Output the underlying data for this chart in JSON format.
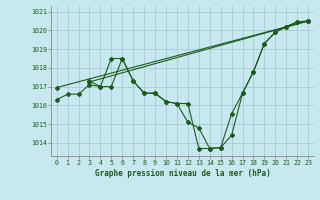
{
  "background_color": "#c8e8f0",
  "grid_color": "#a8c8d8",
  "line_color": "#1a5c1a",
  "title": "Graphe pression niveau de la mer (hPa)",
  "xlim": [
    -0.5,
    23.5
  ],
  "ylim": [
    1013.3,
    1021.3
  ],
  "yticks": [
    1014,
    1015,
    1016,
    1017,
    1018,
    1019,
    1020,
    1021
  ],
  "xticks": [
    0,
    1,
    2,
    3,
    4,
    5,
    6,
    7,
    8,
    9,
    10,
    11,
    12,
    13,
    14,
    15,
    16,
    17,
    18,
    19,
    20,
    21,
    22,
    23
  ],
  "series": [
    {
      "x": [
        0,
        1,
        2,
        3,
        4,
        5,
        6,
        7,
        8,
        9,
        10,
        11,
        12,
        13,
        14,
        15,
        16,
        17,
        18,
        19,
        20,
        21,
        22,
        23
      ],
      "y": [
        1016.3,
        1016.6,
        1016.6,
        1017.1,
        1017.0,
        1017.0,
        1018.5,
        1017.3,
        1016.65,
        1016.65,
        1016.2,
        1016.1,
        1016.1,
        1013.7,
        1013.7,
        1013.75,
        1015.55,
        1016.65,
        1017.8,
        1019.3,
        1019.9,
        1020.2,
        1020.45,
        1020.5
      ]
    },
    {
      "x": [
        3,
        4,
        5,
        6,
        7,
        8,
        9,
        10,
        11,
        12,
        13,
        14,
        15,
        16,
        17,
        18,
        19,
        20,
        21,
        22,
        23
      ],
      "y": [
        1017.3,
        1017.0,
        1018.5,
        1018.5,
        1017.3,
        1016.65,
        1016.65,
        1016.2,
        1016.1,
        1015.1,
        1014.8,
        1013.7,
        1013.75,
        1014.4,
        1016.65,
        1017.8,
        1019.3,
        1019.9,
        1020.2,
        1020.45,
        1020.5
      ]
    },
    {
      "x": [
        0,
        23
      ],
      "y": [
        1016.95,
        1020.5
      ]
    },
    {
      "x": [
        3,
        23
      ],
      "y": [
        1017.25,
        1020.5
      ]
    }
  ]
}
